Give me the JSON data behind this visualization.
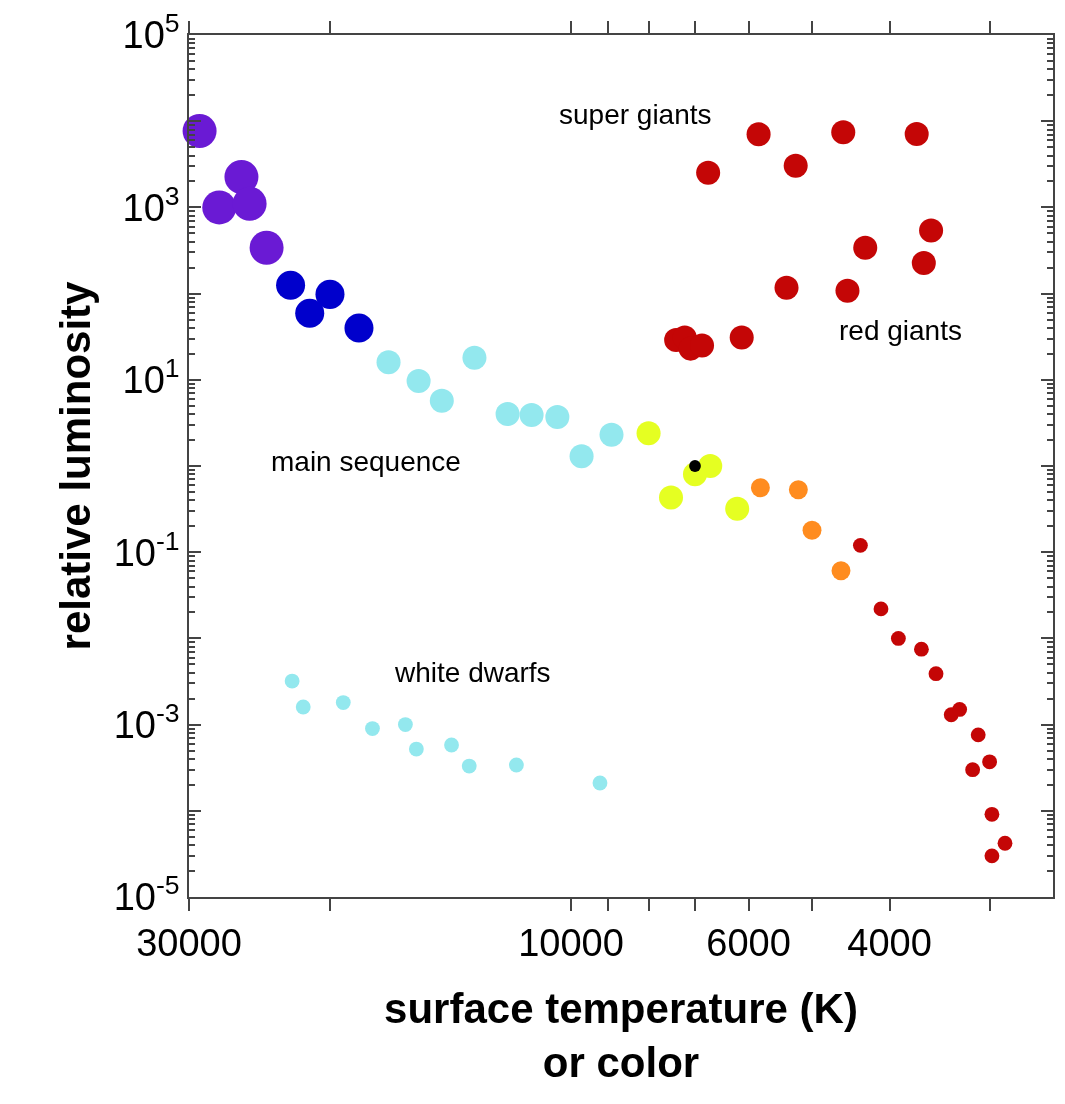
{
  "chart_data": {
    "type": "bubble",
    "xlabel": "surface temperature (K)\nor color",
    "ylabel": "relative luminosity",
    "log": "xy",
    "grid": false,
    "marker": "circle",
    "xlim": [
      30000,
      2500
    ],
    "xticks": [
      30000,
      {
        "value": 20000,
        "label": null
      },
      10000,
      {
        "value": 9000,
        "label": null
      },
      {
        "value": 8000,
        "label": null
      },
      {
        "value": 7000,
        "label": null
      },
      6000,
      {
        "value": 5000,
        "label": null
      },
      4000,
      {
        "value": 3000,
        "label": null
      }
    ],
    "ylim": [
      1e-05,
      100000
    ],
    "yticks": [
      {
        "value": 1e-05,
        "label": "10$^{-5}$"
      },
      {
        "value": 0.0001,
        "label": null
      },
      {
        "value": 0.001,
        "label": "10$^{-3}$"
      },
      {
        "value": 0.01,
        "label": null
      },
      {
        "value": 0.1,
        "label": "10$^{-1}$"
      },
      {
        "value": 1,
        "label": null
      },
      {
        "value": 10,
        "label": "10$^{1}$"
      },
      {
        "value": 100,
        "label": null
      },
      {
        "value": 1000,
        "label": "10$^{3}$"
      },
      {
        "value": 10000,
        "label": null
      },
      {
        "value": 100000,
        "label": "10$^{5}$"
      }
    ],
    "annotations": [
      "super giants",
      "red giants",
      "main sequence",
      "white dwarfs"
    ],
    "series": [
      {
        "color": "#6a1ad4",
        "x": [
          29100,
          25800,
          27500,
          25200,
          24000
        ],
        "values": [
          7700,
          2250,
          1000,
          1100,
          340
        ],
        "sizes": [
          1,
          1,
          1,
          1,
          1
        ]
      },
      {
        "color": "#0000cc",
        "x": [
          22400,
          20000,
          21200,
          18400
        ],
        "values": [
          125,
          98,
          59,
          40
        ],
        "sizes": [
          0.73,
          0.73,
          0.73,
          0.73
        ]
      },
      {
        "color": "#93e8ee",
        "x": [
          16900,
          15500,
          14500,
          13200,
          12000,
          11200,
          10400,
          9700,
          8900
        ],
        "values": [
          16,
          9.7,
          5.7,
          18,
          4.0,
          3.9,
          3.7,
          1.3,
          2.3
        ],
        "sizes": [
          0.5,
          0.5,
          0.5,
          0.5,
          0.5,
          0.5,
          0.5,
          0.5,
          0.5
        ]
      },
      {
        "color": "#e5ff22",
        "x": [
          8000,
          6700,
          7000,
          7500,
          6200
        ],
        "values": [
          2.4,
          1.0,
          0.8,
          0.43,
          0.32
        ],
        "sizes": [
          0.5,
          0.5,
          0.5,
          0.5,
          0.5
        ]
      },
      {
        "color": "#ff8c1f",
        "x": [
          5800,
          5200,
          5000,
          4600
        ],
        "values": [
          0.56,
          0.53,
          0.18,
          0.061
        ],
        "sizes": [
          0.31,
          0.31,
          0.31,
          0.31
        ]
      },
      {
        "color": "#c40606",
        "x": [
          4350,
          4100,
          3900,
          3650,
          3500,
          3350,
          3270,
          3100,
          3000,
          3150,
          2980,
          2870,
          2980
        ],
        "values": [
          0.12,
          0.022,
          0.01,
          0.0075,
          0.0039,
          0.0013,
          0.0015,
          0.00076,
          0.00037,
          0.0003,
          9.1e-05,
          4.2e-05,
          3e-05
        ],
        "sizes": [
          0.19,
          0.19,
          0.19,
          0.19,
          0.19,
          0.19,
          0.19,
          0.19,
          0.19,
          0.19,
          0.19,
          0.19,
          0.19
        ]
      },
      {
        "color": "#c40606",
        "x": [
          5830,
          4570,
          3700,
          6740,
          5240,
          3550,
          4290,
          3625,
          5380,
          4515,
          6120,
          7390,
          7210,
          7090,
          6860
        ],
        "values": [
          7050,
          7430,
          7110,
          2530,
          3050,
          540,
          340,
          226,
          117,
          108,
          31,
          29,
          31,
          23,
          25
        ],
        "sizes": [
          0.5,
          0.5,
          0.5,
          0.5,
          0.5,
          0.5,
          0.5,
          0.5,
          0.5,
          0.5,
          0.5,
          0.5,
          0.5,
          0.5,
          0.5
        ]
      },
      {
        "color": "#93e8ee",
        "x": [
          22300,
          21600,
          19250,
          17700,
          16100,
          15600,
          14100,
          13400,
          11700,
          9200
        ],
        "values": [
          0.0032,
          0.0016,
          0.0018,
          0.0009,
          0.001,
          0.00052,
          0.00058,
          0.00033,
          0.00034,
          0.00021
        ],
        "sizes": [
          0.19,
          0.19,
          0.19,
          0.19,
          0.19,
          0.19,
          0.19,
          0.19,
          0.19,
          0.19
        ]
      },
      {
        "color": "#000000",
        "x": [
          7000
        ],
        "values": [
          1
        ],
        "sizes": [
          0.12
        ]
      }
    ]
  }
}
